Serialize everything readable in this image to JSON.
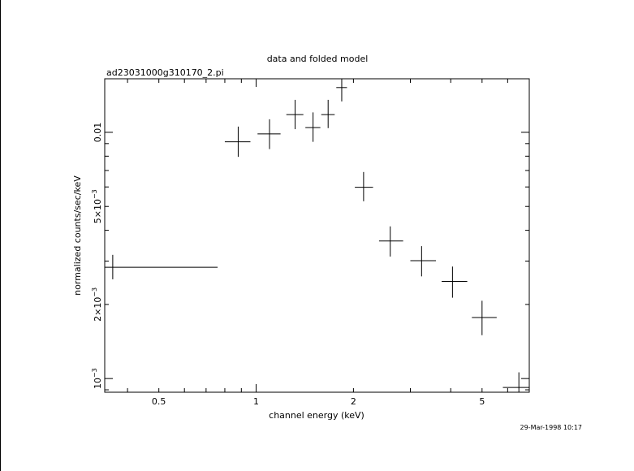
{
  "title": "data and folded model",
  "subtitle": "ad23031000g310170_2.pi",
  "timestamp": "29-Mar-1998 10:17",
  "chart_data": {
    "type": "scatter",
    "title": "data and folded model",
    "subtitle": "ad23031000g310170_2.pi",
    "xlabel": "channel energy (keV)",
    "ylabel": "normalized counts/sec/keV",
    "xscale": "log",
    "yscale": "log",
    "xlim": [
      0.34,
      7.0
    ],
    "ylim": [
      0.00088,
      0.0165
    ],
    "grid": false,
    "legend": "none",
    "xticks": [
      {
        "value": 0.5,
        "label": "0.5"
      },
      {
        "value": 1,
        "label": "1"
      },
      {
        "value": 2,
        "label": "2"
      },
      {
        "value": 5,
        "label": "5"
      }
    ],
    "yticks": [
      {
        "value": 0.001,
        "base": "10",
        "exp": "−3"
      },
      {
        "value": 0.002,
        "base": "2×10",
        "exp": "−3"
      },
      {
        "value": 0.005,
        "base": "5×10",
        "exp": "−3"
      },
      {
        "value": 0.01,
        "base": "0.01",
        "exp": ""
      }
    ],
    "points": [
      {
        "x": 0.36,
        "xlo": 0.34,
        "xhi": 0.76,
        "y": 0.00283,
        "ylo": 0.00253,
        "yhi": 0.00318
      },
      {
        "x": 0.88,
        "xlo": 0.8,
        "xhi": 0.96,
        "y": 0.00915,
        "ylo": 0.00795,
        "yhi": 0.01055
      },
      {
        "x": 1.1,
        "xlo": 1.01,
        "xhi": 1.19,
        "y": 0.00985,
        "ylo": 0.00855,
        "yhi": 0.0113
      },
      {
        "x": 1.32,
        "xlo": 1.24,
        "xhi": 1.4,
        "y": 0.0118,
        "ylo": 0.0103,
        "yhi": 0.01355
      },
      {
        "x": 1.5,
        "xlo": 1.42,
        "xhi": 1.58,
        "y": 0.01045,
        "ylo": 0.00915,
        "yhi": 0.01205
      },
      {
        "x": 1.67,
        "xlo": 1.59,
        "xhi": 1.75,
        "y": 0.0118,
        "ylo": 0.0104,
        "yhi": 0.01355
      },
      {
        "x": 1.84,
        "xlo": 1.77,
        "xhi": 1.91,
        "y": 0.0152,
        "ylo": 0.01335,
        "yhi": 0.0165
      },
      {
        "x": 2.15,
        "xlo": 2.02,
        "xhi": 2.3,
        "y": 0.00598,
        "ylo": 0.00525,
        "yhi": 0.0069
      },
      {
        "x": 2.6,
        "xlo": 2.4,
        "xhi": 2.85,
        "y": 0.00362,
        "ylo": 0.00313,
        "yhi": 0.00415
      },
      {
        "x": 3.25,
        "xlo": 3.0,
        "xhi": 3.6,
        "y": 0.00301,
        "ylo": 0.0026,
        "yhi": 0.00345
      },
      {
        "x": 4.05,
        "xlo": 3.75,
        "xhi": 4.5,
        "y": 0.00248,
        "ylo": 0.00213,
        "yhi": 0.00285
      },
      {
        "x": 5.0,
        "xlo": 4.65,
        "xhi": 5.55,
        "y": 0.00177,
        "ylo": 0.0015,
        "yhi": 0.00207
      },
      {
        "x": 6.5,
        "xlo": 5.8,
        "xhi": 7.0,
        "y": 0.00092,
        "ylo": 0.0008,
        "yhi": 0.00106
      }
    ]
  }
}
